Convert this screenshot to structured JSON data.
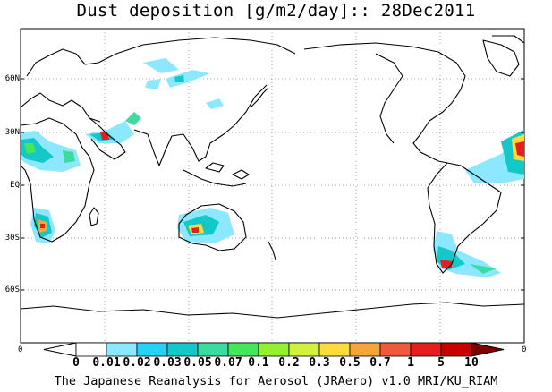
{
  "title": "Dust deposition [g/m2/day]:: 28Dec2011",
  "footer": "The Japanese Reanalysis for Aerosol (JRAero) v1.0 MRI/KU_RIAM",
  "map": {
    "projection": "equirectangular",
    "center_longitude": 180,
    "latitude_range": [
      -90,
      90
    ],
    "gridlines": "dotted",
    "lat_labels": [
      "60N",
      "30N",
      "EQ",
      "30S",
      "60S"
    ],
    "x_axis_end_labels": [
      "0",
      "0"
    ]
  },
  "colorbar": {
    "labels": [
      "0",
      "0.01",
      "0.02",
      "0.03",
      "0.05",
      "0.07",
      "0.1",
      "0.2",
      "0.3",
      "0.5",
      "0.7",
      "1",
      "5",
      "10"
    ],
    "colors": [
      "#ffffff",
      "#8ce8ff",
      "#28d2f5",
      "#14c8c8",
      "#3cdca0",
      "#46e65a",
      "#96f032",
      "#d2f03c",
      "#fadc3c",
      "#f5a53c",
      "#f05a3c",
      "#e61e1e",
      "#c80000",
      "#a00000",
      "#7d0000"
    ]
  },
  "colors": {
    "background": "#ffffff",
    "coastline": "#000000",
    "gridline": "#888888",
    "low_dust": "#8ce8ff",
    "mid_dust": "#14c8c8",
    "high_dust": "#e61e1e"
  }
}
